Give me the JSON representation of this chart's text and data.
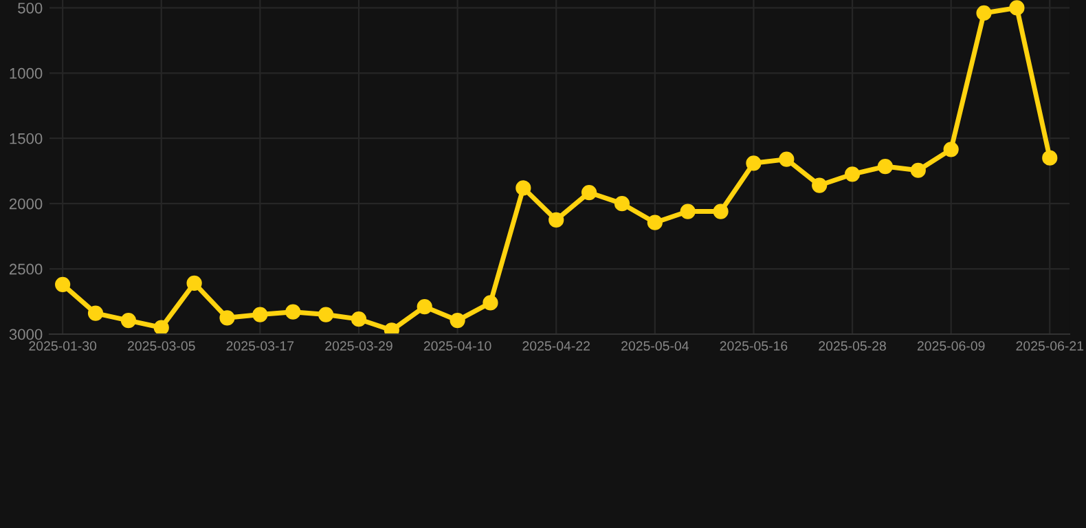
{
  "chart_data": {
    "type": "line",
    "categories": [
      "2025-01-30",
      null,
      null,
      "2025-03-05",
      null,
      null,
      "2025-03-17",
      null,
      null,
      "2025-03-29",
      null,
      null,
      "2025-04-10",
      null,
      null,
      "2025-04-22",
      null,
      null,
      "2025-05-04",
      null,
      null,
      "2025-05-16",
      null,
      null,
      "2025-05-28",
      null,
      null,
      "2025-06-09",
      null,
      null,
      "2025-06-21"
    ],
    "series": [
      {
        "color": "#ffd30f",
        "values": [
          2620,
          2840,
          2895,
          2950,
          2610,
          2875,
          2850,
          2830,
          2850,
          2885,
          2970,
          2790,
          2895,
          2760,
          1880,
          2125,
          1915,
          2000,
          2145,
          2060,
          2060,
          1690,
          1660,
          1860,
          1775,
          1715,
          1745,
          1585,
          540,
          500,
          1650
        ]
      }
    ],
    "ylim": [
      3000,
      440
    ],
    "yticks": [
      500,
      1000,
      1500,
      2000,
      2500,
      3000
    ],
    "grid": true,
    "marker": "circle",
    "line_style": "solid"
  }
}
